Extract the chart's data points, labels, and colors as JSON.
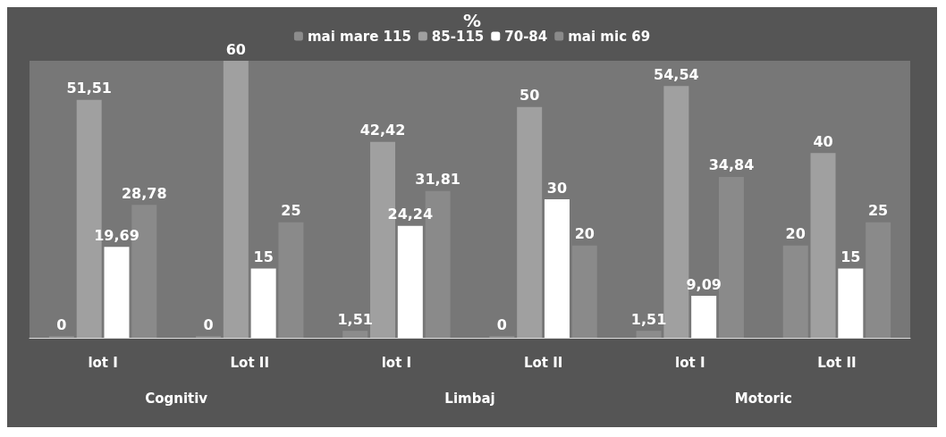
{
  "chart_data": {
    "type": "bar",
    "title": "%",
    "categories": [
      "lot I",
      "Lot II",
      "lot I",
      "Lot II",
      "lot I",
      "Lot II"
    ],
    "annotations": [
      "Cognitiv",
      "Limbaj",
      "Motoric"
    ],
    "series": [
      {
        "name": "mai mare 115",
        "color": "#8c8c8c",
        "values": [
          0,
          0,
          1.51,
          0,
          1.51,
          20
        ],
        "value_labels": [
          "0",
          "0",
          "1,51",
          "0",
          "1,51",
          "20"
        ]
      },
      {
        "name": "85-115",
        "color": "#a0a0a0",
        "values": [
          51.51,
          60,
          42.42,
          50,
          54.54,
          40
        ],
        "value_labels": [
          "51,51",
          "60",
          "42,42",
          "50",
          "54,54",
          "40"
        ]
      },
      {
        "name": "70-84",
        "color": "#ffffff",
        "values": [
          19.69,
          15,
          24.24,
          30,
          9.09,
          15
        ],
        "value_labels": [
          "19,69",
          "15",
          "24,24",
          "30",
          "9,09",
          "15"
        ]
      },
      {
        "name": "mai mic 69",
        "color": "#8a8a8a",
        "values": [
          28.78,
          25,
          31.81,
          20,
          34.84,
          25
        ],
        "value_labels": [
          "28,78",
          "25",
          "31,81",
          "20",
          "34,84",
          "25"
        ]
      }
    ],
    "legend": "top"
  }
}
